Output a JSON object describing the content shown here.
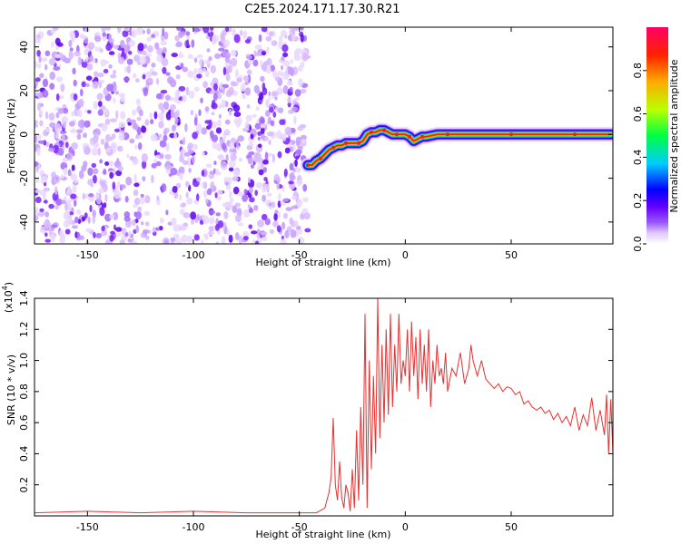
{
  "title": "C2E5.2024.171.17.30.R21",
  "chart_data": [
    {
      "type": "heatmap",
      "xlabel": "Height of straight line (km)",
      "ylabel": "Frequency (Hz)",
      "xlim": [
        -175,
        98
      ],
      "ylim": [
        -50,
        49
      ],
      "xticks": [
        -150,
        -100,
        -50,
        0,
        50
      ],
      "yticks": [
        -40,
        -20,
        0,
        20,
        40
      ],
      "grid": false,
      "noise_region": {
        "x_from": -175,
        "x_to": -46,
        "y_from": -50,
        "y_to": 49
      },
      "track": {
        "x": [
          -46,
          -44,
          -42,
          -40,
          -38,
          -36,
          -34,
          -32,
          -30,
          -28,
          -26,
          -24,
          -22,
          -20,
          -18,
          -16,
          -14,
          -12,
          -10,
          -8,
          -6,
          -4,
          -2,
          0,
          2,
          4,
          6,
          8,
          10,
          15,
          20,
          30,
          40,
          50,
          60,
          70,
          80,
          90,
          97
        ],
        "y": [
          -14,
          -14,
          -12,
          -11,
          -9,
          -7,
          -6,
          -5,
          -5,
          -4,
          -4,
          -4,
          -4,
          -3,
          0,
          1,
          1,
          2,
          2,
          1,
          0,
          0,
          0,
          0,
          -1,
          -3,
          -2,
          -1,
          -1,
          0,
          0,
          0,
          0,
          0,
          0,
          0,
          0,
          0,
          0
        ]
      },
      "colorbar": {
        "label": "Normalized spectral amplitude",
        "range": [
          0.0,
          1.0
        ],
        "ticks": [
          0.0,
          0.2,
          0.4,
          0.6,
          0.8
        ],
        "colors": [
          "#ffffff",
          "#e0c8ff",
          "#9955ff",
          "#6600ff",
          "#0000ff",
          "#00ccff",
          "#00ff44",
          "#bbff00",
          "#ffaa00",
          "#ff2200",
          "#ff0066"
        ]
      }
    },
    {
      "type": "line",
      "xlabel": "Height of straight line (km)",
      "ylabel": "SNR (10 * v/v)",
      "y_multiplier": "(x10^4)",
      "xlim": [
        -175,
        98
      ],
      "ylim": [
        0,
        1.4
      ],
      "xticks": [
        -150,
        -100,
        -50,
        0,
        50
      ],
      "yticks": [
        0.2,
        0.4,
        0.6,
        0.8,
        1.0,
        1.2,
        1.4
      ],
      "grid": false,
      "series": [
        {
          "color": "#e83030",
          "x": [
            -175,
            -150,
            -125,
            -100,
            -75,
            -50,
            -42,
            -38,
            -36,
            -35,
            -34,
            -33,
            -32,
            -31,
            -30,
            -29,
            -28,
            -27,
            -26,
            -25,
            -24,
            -23,
            -22,
            -21,
            -20,
            -19,
            -18,
            -17,
            -16,
            -15,
            -14,
            -13,
            -12,
            -11,
            -10,
            -9,
            -8,
            -7,
            -6,
            -5,
            -4,
            -3,
            -2,
            -1,
            0,
            1,
            2,
            3,
            4,
            5,
            6,
            7,
            8,
            9,
            10,
            11,
            12,
            13,
            14,
            15,
            16,
            17,
            18,
            19,
            20,
            22,
            24,
            26,
            28,
            30,
            31,
            32,
            33,
            34,
            36,
            38,
            40,
            42,
            44,
            46,
            48,
            50,
            52,
            54,
            56,
            58,
            60,
            62,
            64,
            66,
            68,
            70,
            72,
            74,
            76,
            78,
            80,
            82,
            84,
            86,
            88,
            90,
            92,
            94,
            95,
            96,
            97,
            98
          ],
          "y": [
            0.02,
            0.03,
            0.02,
            0.03,
            0.02,
            0.02,
            0.02,
            0.05,
            0.15,
            0.25,
            0.63,
            0.2,
            0.1,
            0.35,
            0.12,
            0.05,
            0.2,
            0.15,
            0.03,
            0.3,
            0.05,
            0.55,
            0.1,
            0.7,
            0.2,
            1.3,
            0.05,
            1.0,
            0.3,
            0.9,
            0.4,
            1.4,
            0.5,
            1.1,
            0.6,
            1.2,
            0.65,
            1.3,
            0.7,
            1.1,
            0.8,
            1.3,
            0.85,
            1.0,
            0.9,
            1.2,
            0.8,
            1.25,
            0.9,
            1.15,
            0.75,
            1.2,
            0.85,
            1.1,
            0.8,
            1.2,
            0.7,
            1.0,
            0.85,
            1.1,
            0.9,
            0.95,
            0.85,
            1.05,
            0.8,
            0.95,
            0.9,
            1.05,
            0.85,
            0.95,
            1.1,
            1.0,
            0.95,
            0.9,
            1.0,
            0.88,
            0.85,
            0.82,
            0.85,
            0.8,
            0.83,
            0.82,
            0.78,
            0.8,
            0.72,
            0.74,
            0.7,
            0.68,
            0.7,
            0.66,
            0.68,
            0.62,
            0.66,
            0.6,
            0.64,
            0.58,
            0.7,
            0.55,
            0.65,
            0.58,
            0.76,
            0.55,
            0.68,
            0.52,
            0.78,
            0.4,
            0.75,
            0.4
          ]
        }
      ]
    }
  ]
}
